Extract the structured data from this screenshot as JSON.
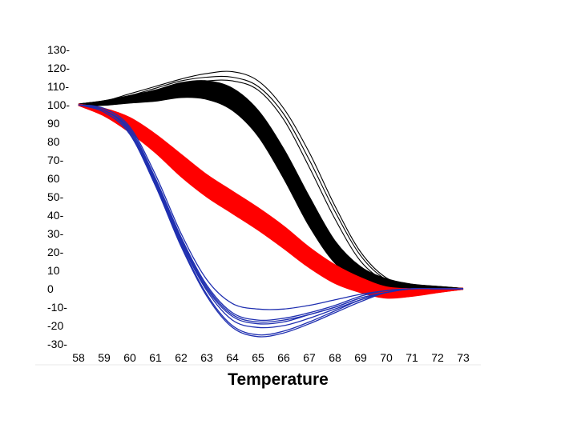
{
  "chart_data": {
    "type": "line",
    "title": "",
    "xlabel": "Temperature",
    "ylabel": "",
    "xlim": [
      58,
      73
    ],
    "ylim": [
      -30,
      130
    ],
    "grid": false,
    "legend": "none",
    "x_ticks": [
      "58",
      "59",
      "60",
      "61",
      "62",
      "63",
      "64",
      "65",
      "66",
      "67",
      "68",
      "69",
      "70",
      "71",
      "72",
      "73"
    ],
    "y_ticks": [
      "130-",
      "120-",
      "110-",
      "100-",
      "90",
      "80",
      "70-",
      "60",
      "50-",
      "40-",
      "30-",
      "20-",
      "10",
      "0",
      "-10-",
      "-20",
      "-30-"
    ],
    "series_groups": [
      {
        "color": "#000000",
        "x": [
          58,
          59,
          60,
          61,
          62,
          63,
          64,
          65,
          66,
          67,
          68,
          69,
          70,
          71,
          72,
          73
        ],
        "center": [
          100,
          101,
          103,
          105,
          108,
          108,
          103,
          90,
          68,
          42,
          20,
          8,
          3,
          1,
          0.5,
          0
        ],
        "spread": [
          0.4,
          1.2,
          2,
          3,
          4,
          5,
          6,
          7,
          8,
          8,
          6,
          4,
          2.5,
          1.5,
          0.8,
          0.2
        ],
        "outliers": [
          [
            100,
            102,
            106,
            110,
            114,
            117,
            118,
            113,
            98,
            74,
            45,
            20,
            6,
            2,
            1,
            0
          ],
          [
            100,
            102,
            105,
            109,
            113,
            115,
            115,
            110,
            95,
            70,
            42,
            18,
            5,
            2,
            1,
            0
          ],
          [
            100,
            101,
            104,
            108,
            111,
            113,
            113,
            108,
            92,
            66,
            38,
            15,
            4,
            1.5,
            0.5,
            0
          ]
        ]
      },
      {
        "color": "#ff0000",
        "x": [
          58,
          59,
          60,
          61,
          62,
          63,
          64,
          65,
          66,
          67,
          68,
          69,
          70,
          71,
          72,
          73
        ],
        "center": [
          100,
          96,
          89,
          79,
          67,
          56,
          47,
          38,
          28,
          17,
          8,
          2,
          -2,
          -2,
          -1,
          0
        ],
        "spread": [
          0.3,
          2,
          4,
          5,
          6,
          6,
          6,
          6,
          6,
          5.5,
          5,
          4,
          3,
          2,
          1,
          0.2
        ]
      },
      {
        "color": "#1f2fb0",
        "x": [
          58,
          59,
          60,
          61,
          62,
          63,
          64,
          65,
          66,
          67,
          68,
          69,
          70,
          71,
          72,
          73
        ],
        "curves": [
          [
            100,
            98,
            88,
            62,
            30,
            5,
            -8,
            -11,
            -11,
            -9,
            -6,
            -3,
            -1,
            0,
            0,
            0
          ],
          [
            100,
            97,
            87,
            60,
            28,
            2,
            -13,
            -17,
            -16,
            -13,
            -9,
            -4,
            -1,
            0,
            0,
            0
          ],
          [
            100,
            97,
            86,
            59,
            27,
            1,
            -14,
            -18,
            -17,
            -14,
            -10,
            -5,
            -2,
            0,
            0,
            0
          ],
          [
            100,
            97,
            86,
            58,
            26,
            0,
            -15,
            -19,
            -18,
            -14,
            -10,
            -5,
            -2,
            0,
            0,
            0
          ],
          [
            100,
            97,
            85,
            57,
            25,
            -1,
            -17,
            -21,
            -20,
            -16,
            -11,
            -6,
            -2,
            0,
            0,
            0
          ],
          [
            100,
            96,
            84,
            56,
            24,
            -3,
            -20,
            -25,
            -23,
            -18,
            -12,
            -6,
            -2,
            0,
            0,
            0
          ],
          [
            100,
            96,
            84,
            56,
            23,
            -4,
            -21,
            -26,
            -24,
            -19,
            -13,
            -7,
            -2,
            0,
            0,
            0
          ]
        ]
      }
    ]
  }
}
